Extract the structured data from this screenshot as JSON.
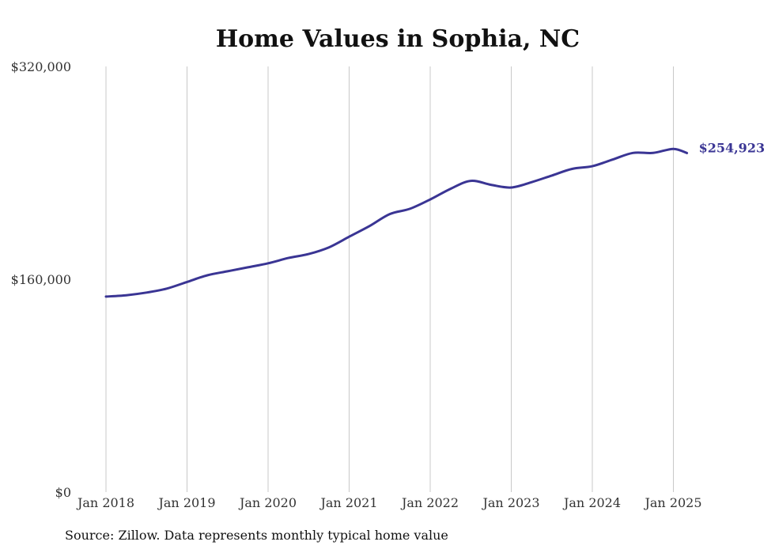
{
  "chart_data": {
    "type": "line",
    "title": "Home Values in Sophia, NC",
    "y_ticks": [
      {
        "value": 320000,
        "label": "$320,000"
      },
      {
        "value": 160000,
        "label": "$160,000"
      },
      {
        "value": 0,
        "label": "$0"
      }
    ],
    "ylim": [
      0,
      320000
    ],
    "x_ticks": [
      {
        "value": "2018-01",
        "label": "Jan 2018"
      },
      {
        "value": "2019-01",
        "label": "Jan 2019"
      },
      {
        "value": "2020-01",
        "label": "Jan 2020"
      },
      {
        "value": "2021-01",
        "label": "Jan 2021"
      },
      {
        "value": "2022-01",
        "label": "Jan 2022"
      },
      {
        "value": "2023-01",
        "label": "Jan 2023"
      },
      {
        "value": "2024-01",
        "label": "Jan 2024"
      },
      {
        "value": "2025-01",
        "label": "Jan 2025"
      }
    ],
    "xlim": [
      "2018-01",
      "2025-12"
    ],
    "grid": {
      "vertical": true,
      "horizontal": false
    },
    "series": [
      {
        "color": "#3a3594",
        "x": [
          "2018-01",
          "2018-04",
          "2018-07",
          "2018-10",
          "2019-01",
          "2019-04",
          "2019-07",
          "2019-10",
          "2020-01",
          "2020-04",
          "2020-07",
          "2020-10",
          "2021-01",
          "2021-04",
          "2021-07",
          "2021-10",
          "2022-01",
          "2022-04",
          "2022-07",
          "2022-10",
          "2023-01",
          "2023-04",
          "2023-07",
          "2023-10",
          "2024-01",
          "2024-04",
          "2024-07",
          "2024-10",
          "2025-01",
          "2025-03"
        ],
        "values": [
          147000,
          148000,
          150000,
          153000,
          158000,
          163000,
          166000,
          169000,
          172000,
          176000,
          179000,
          184000,
          192000,
          200000,
          209000,
          213000,
          220000,
          228000,
          234000,
          231000,
          229000,
          233000,
          238000,
          243000,
          245000,
          250000,
          255000,
          255000,
          258000,
          254923
        ],
        "end_label": "$254,923"
      }
    ]
  },
  "source": "Source: Zillow. Data represents monthly typical home value"
}
